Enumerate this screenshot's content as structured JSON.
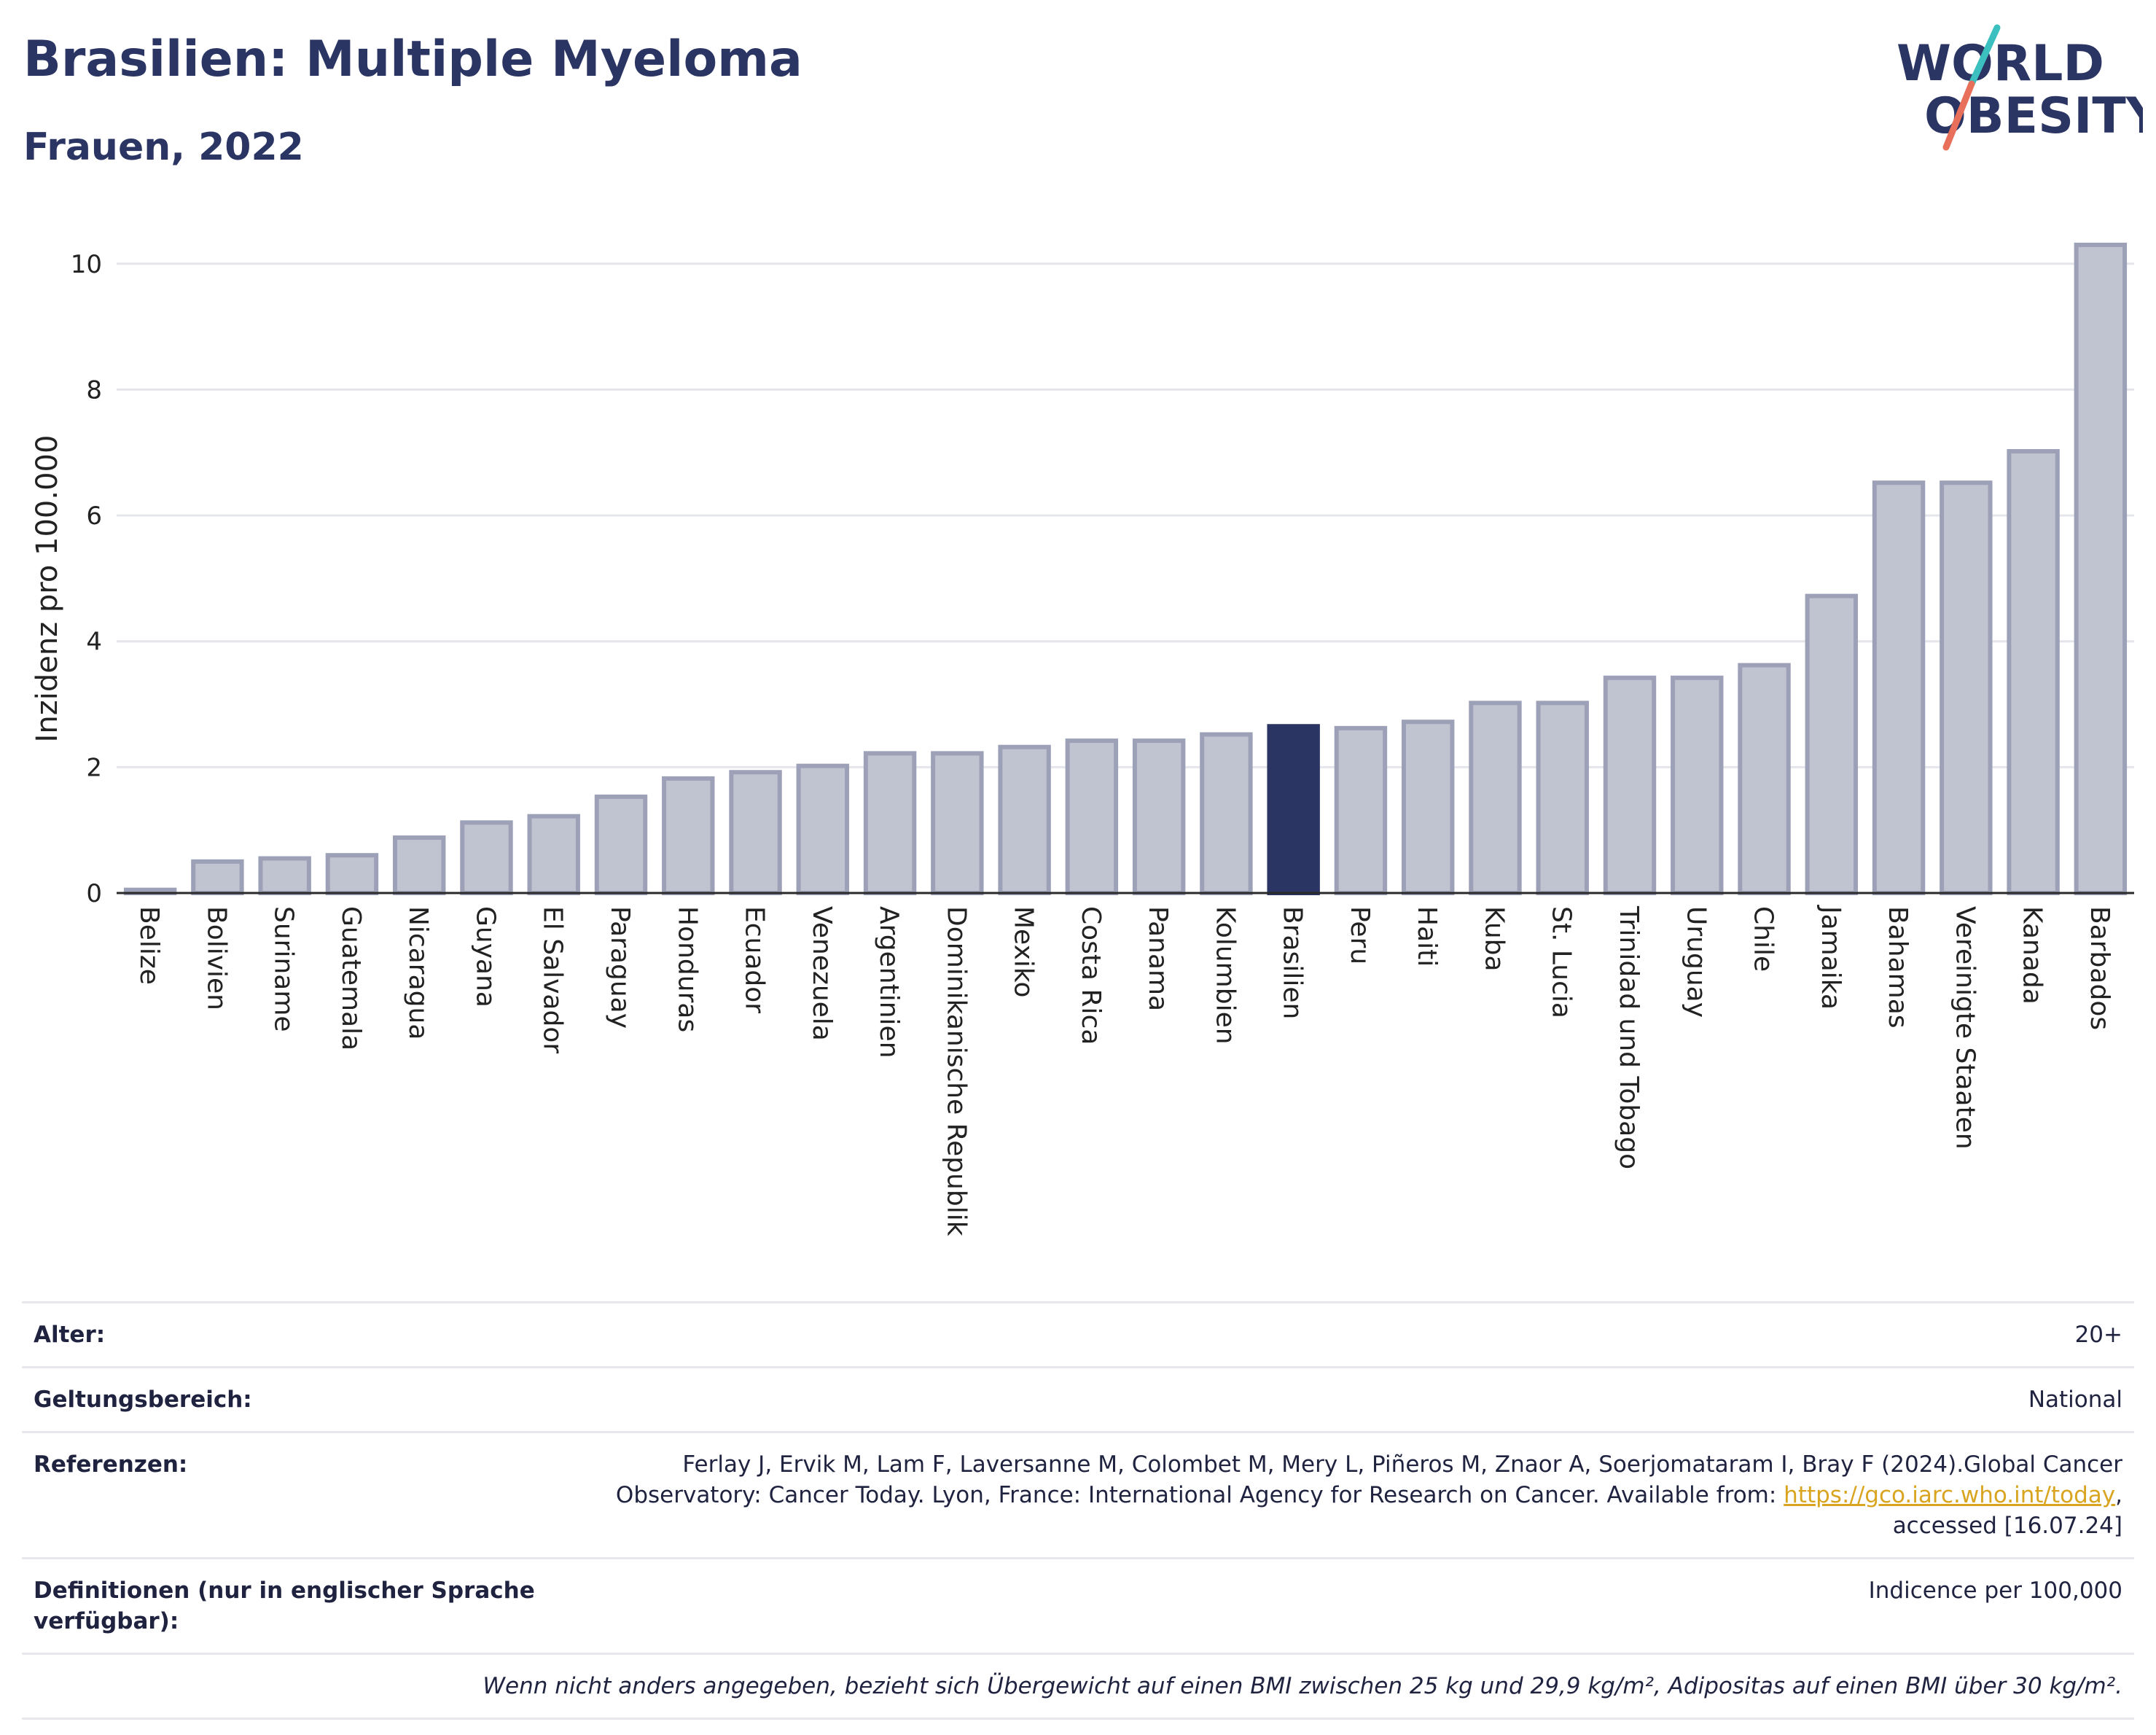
{
  "header": {
    "title": "Brasilien: Multiple Myeloma",
    "subtitle": "Frauen, 2022"
  },
  "logo": {
    "line1": "WORLD",
    "line2": "OBESITY",
    "colors": {
      "text": "#2b3563",
      "slash_teal": "#3bbfbf",
      "slash_red": "#e8705a"
    }
  },
  "chart_data": {
    "type": "bar",
    "title": "",
    "xlabel": "",
    "ylabel": "Inzidenz pro 100.000",
    "ylim": [
      0,
      10.6
    ],
    "yticks": [
      0,
      2,
      4,
      6,
      8,
      10
    ],
    "grid": true,
    "highlight": "Brasilien",
    "colors": {
      "bar": "#c0c3d0",
      "bar_edge": "#9da1b8",
      "highlight": "#2b3563"
    },
    "categories": [
      "Belize",
      "Bolivien",
      "Suriname",
      "Guatemala",
      "Nicaragua",
      "Guyana",
      "El Salvador",
      "Paraguay",
      "Honduras",
      "Ecuador",
      "Venezuela",
      "Argentinien",
      "Dominikanische Republik",
      "Mexiko",
      "Costa Rica",
      "Panama",
      "Kolumbien",
      "Brasilien",
      "Peru",
      "Haiti",
      "Kuba",
      "St. Lucia",
      "Trinidad und Tobago",
      "Uruguay",
      "Chile",
      "Jamaika",
      "Bahamas",
      "Vereinigte Staaten",
      "Kanada",
      "Barbados"
    ],
    "values": [
      0.05,
      0.5,
      0.55,
      0.6,
      0.88,
      1.12,
      1.22,
      1.53,
      1.82,
      1.92,
      2.02,
      2.22,
      2.22,
      2.32,
      2.42,
      2.42,
      2.52,
      2.65,
      2.62,
      2.72,
      3.02,
      3.02,
      3.42,
      3.42,
      3.62,
      4.72,
      6.52,
      6.52,
      7.02,
      10.3
    ]
  },
  "meta": {
    "rows": [
      {
        "key": "Alter:",
        "value": "20+"
      },
      {
        "key": "Geltungsbereich:",
        "value": "National"
      }
    ],
    "references": {
      "key": "Referenzen:",
      "text_before": "Ferlay J, Ervik M, Lam F, Laversanne M, Colombet M, Mery L, Piñeros M, Znaor A, Soerjomataram I, Bray F (2024).Global Cancer Observatory: Cancer Today. Lyon, France: International Agency for Research on Cancer. Available from: ",
      "link": "https://gco.iarc.who.int/today",
      "text_after": ", accessed [16.07.24]"
    },
    "definitions": {
      "key": "Definitionen (nur in englischer Sprache verfügbar):",
      "value": "Indicence per 100,000"
    },
    "note": "Wenn nicht anders angegeben, bezieht sich Übergewicht auf einen BMI zwischen 25 kg und 29,9 kg/m², Adipositas auf einen BMI über 30 kg/m²."
  }
}
